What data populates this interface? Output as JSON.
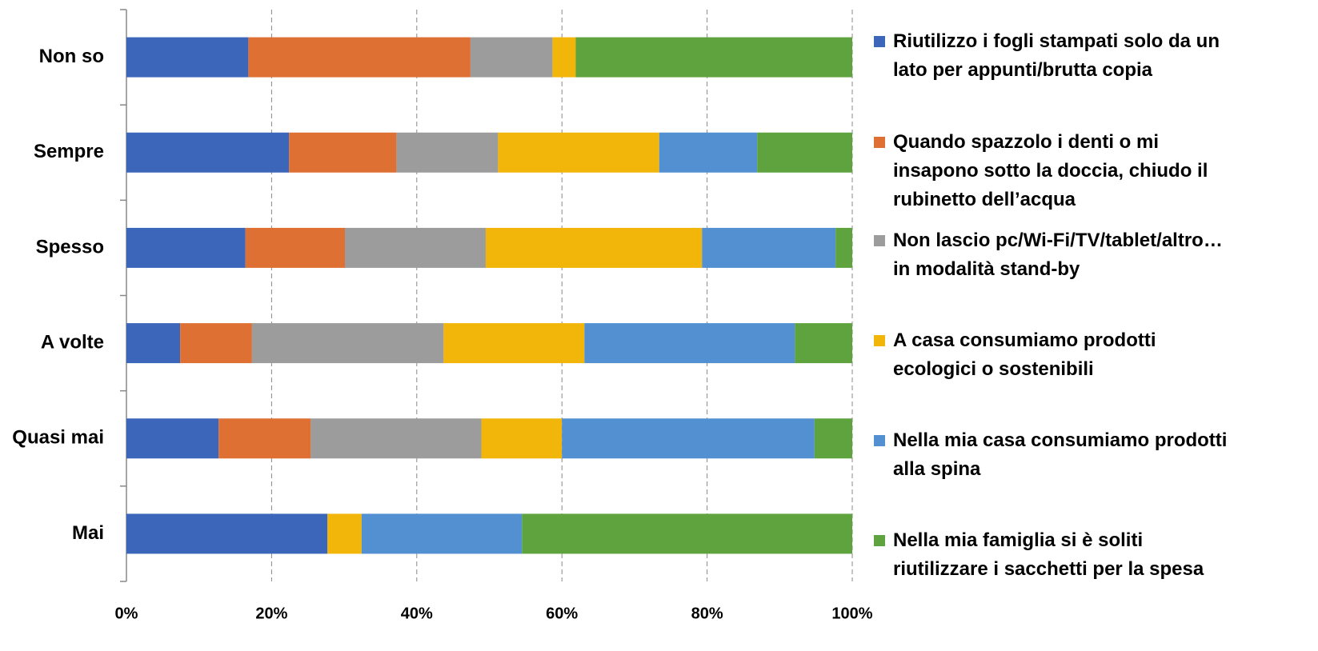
{
  "chart_data": {
    "type": "bar",
    "orientation": "horizontal",
    "stacked": true,
    "categories": [
      "Non so",
      "Sempre",
      "Spesso",
      "A volte",
      "Quasi mai",
      "Mai"
    ],
    "series": [
      {
        "name": "Riutilizzo i fogli stampati solo da un lato per appunti/brutta copia",
        "color": "#3c66ba",
        "values": [
          16.8,
          22.4,
          16.4,
          7.4,
          12.7,
          27.7
        ]
      },
      {
        "name": "Quando spazzolo i denti o mi insapono sotto la doccia, chiudo il rubinetto dell’acqua",
        "color": "#de7033",
        "values": [
          30.6,
          14.8,
          13.7,
          9.9,
          12.7,
          0
        ]
      },
      {
        "name": "Non lascio pc/Wi-Fi/TV/tablet/altro… in modalità stand-by",
        "color": "#9c9c9c",
        "values": [
          11.3,
          14.0,
          19.4,
          26.4,
          23.5,
          0
        ]
      },
      {
        "name": "A casa consumiamo prodotti ecologici o sostenibili",
        "color": "#f2b50a",
        "values": [
          3.2,
          22.2,
          29.8,
          19.4,
          11.1,
          4.7
        ]
      },
      {
        "name": "Nella mia casa consumiamo prodotti alla spina",
        "color": "#5290d2",
        "values": [
          0,
          13.5,
          18.4,
          29.0,
          34.8,
          22.1
        ]
      },
      {
        "name": "Nella mia famiglia si è soliti riutilizzare i sacchetti per la spesa",
        "color": "#5fa33f",
        "values": [
          38.1,
          13.1,
          2.3,
          7.9,
          5.2,
          45.5
        ]
      }
    ],
    "xlim": [
      0,
      100
    ],
    "xticks": [
      {
        "value": 0,
        "label": "0%"
      },
      {
        "value": 20,
        "label": "20%"
      },
      {
        "value": 40,
        "label": "40%"
      },
      {
        "value": 60,
        "label": "60%"
      },
      {
        "value": 80,
        "label": "80%"
      },
      {
        "value": 100,
        "label": "100%"
      }
    ],
    "grid": true,
    "legend": "right"
  }
}
